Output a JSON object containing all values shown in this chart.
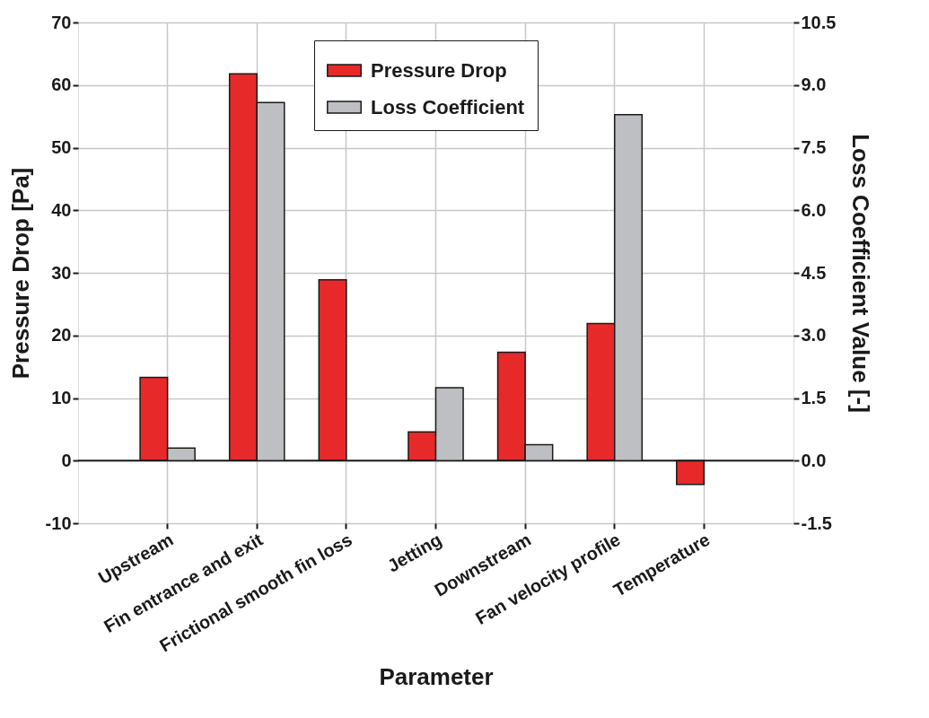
{
  "chart_data": {
    "type": "bar",
    "xlabel": "Parameter",
    "ylabel": "Pressure Drop [Pa]",
    "y2label": "Loss Coefficient Value [-]",
    "categories": [
      "Upstream",
      "Fin entrance and exit",
      "Frictional smooth fin loss",
      "Jetting",
      "Downstream",
      "Fan velocity profile",
      "Temperature"
    ],
    "series": [
      {
        "name": "Pressure Drop",
        "color": "#e8292a",
        "values": [
          13.3,
          61.8,
          28.9,
          4.6,
          17.3,
          21.9,
          -3.8
        ]
      },
      {
        "name": "Loss Coefficient",
        "color": "#bebfc3",
        "axis": "y2",
        "values": [
          0.3,
          8.58,
          null,
          1.75,
          0.38,
          8.29,
          null
        ]
      }
    ],
    "ylim": [
      -10,
      70
    ],
    "yticks": [
      -10,
      0,
      10,
      20,
      30,
      40,
      50,
      60,
      70
    ],
    "y2lim": [
      -1.5,
      10.5
    ],
    "y2ticks": [
      {
        "value": -1.5,
        "label": "-1.5"
      },
      {
        "value": 0,
        "label": "0.0"
      },
      {
        "value": 1.5,
        "label": "1.5"
      },
      {
        "value": 3,
        "label": "3.0"
      },
      {
        "value": 4.5,
        "label": "4.5"
      },
      {
        "value": 6,
        "label": "6.0"
      },
      {
        "value": 7.5,
        "label": "7.5"
      },
      {
        "value": 9,
        "label": "9.0"
      },
      {
        "value": 10.5,
        "label": "10.5"
      }
    ],
    "ref_lines": [
      {
        "axis": "y",
        "value": 0,
        "color": "#1a1a1a"
      }
    ],
    "grid": true,
    "legend": "top"
  }
}
